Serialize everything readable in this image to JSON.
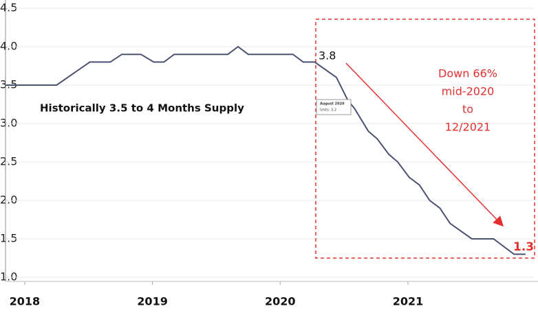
{
  "chart_data": {
    "type": "line",
    "x": [
      2017.85,
      2018.25,
      2018.51,
      2018.67,
      2018.76,
      2018.91,
      2019.01,
      2019.09,
      2019.17,
      2019.59,
      2019.67,
      2019.75,
      2020.1,
      2020.18,
      2020.27,
      2020.44,
      2020.53,
      2020.58,
      2020.69,
      2020.76,
      2020.85,
      2020.92,
      2021.01,
      2021.09,
      2021.17,
      2021.25,
      2021.33,
      2021.5,
      2021.67,
      2021.83,
      2021.92
    ],
    "series": [
      {
        "color": "#4a5070",
        "values": [
          3.5,
          3.5,
          3.8,
          3.8,
          3.9,
          3.9,
          3.8,
          3.8,
          3.9,
          3.9,
          4.0,
          3.9,
          3.9,
          3.8,
          3.8,
          3.6,
          3.3,
          3.2,
          2.9,
          2.8,
          2.6,
          2.5,
          2.3,
          2.2,
          2.0,
          1.9,
          1.7,
          1.5,
          1.5,
          1.3,
          1.3
        ]
      }
    ],
    "xlim": [
      2017.85,
      2021.98
    ],
    "xticks": [
      2018,
      2019,
      2020,
      2021
    ],
    "ylim": [
      1,
      4.5
    ],
    "yticks": [
      4.5,
      {
        "value": 4,
        "label": "4.0"
      },
      3.5,
      {
        "value": 3,
        "label": "3.0"
      },
      2.5,
      {
        "value": 2,
        "label": "2.0"
      },
      1.5,
      {
        "value": 1,
        "label": "1.0"
      }
    ],
    "grid": true,
    "annotations": {
      "history": "Historically 3.5 to 4 Months Supply",
      "start": "3.8",
      "end": "1.3",
      "down": [
        "Down 66%",
        "mid-2020",
        "to",
        "12/2021"
      ],
      "tooltip": [
        "August 2020",
        "Units: 3.2"
      ]
    }
  }
}
